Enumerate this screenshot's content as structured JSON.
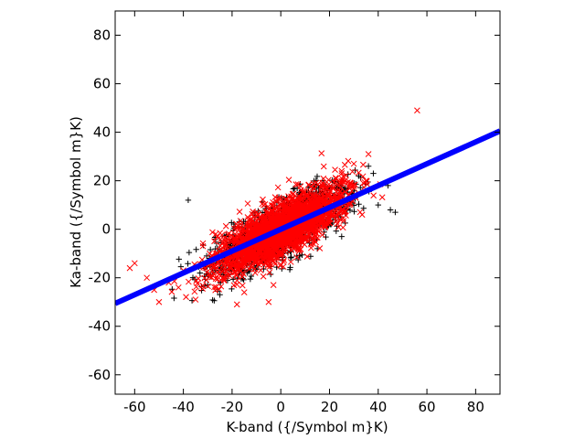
{
  "chart_data": {
    "type": "scatter",
    "title": "",
    "xlabel": "K-band ({/Symbol m}K)",
    "ylabel": "Ka-band ({/Symbol m}K)",
    "xlim": [
      -68,
      90
    ],
    "ylim": [
      -68,
      90
    ],
    "grid": false,
    "legend": "none",
    "xticks": [
      -60,
      -40,
      -20,
      0,
      20,
      40,
      60,
      80
    ],
    "yticks": [
      -60,
      -40,
      -20,
      0,
      20,
      40,
      60,
      80
    ],
    "series": [
      {
        "marker": "plus",
        "color": "#000000",
        "cloud": {
          "center": [
            0,
            0
          ],
          "slope": 0.5,
          "x_sd": 14,
          "residual_sd": 5.5,
          "count": 1500,
          "x_range": [
            -45,
            48
          ]
        },
        "points": [
          [
            -38,
            12
          ],
          [
            36,
            26
          ],
          [
            44,
            18
          ],
          [
            45,
            8
          ],
          [
            40,
            10
          ],
          [
            -25,
            -27
          ],
          [
            -30,
            -23
          ],
          [
            38,
            23
          ],
          [
            32,
            22
          ],
          [
            15,
            -8
          ],
          [
            -10,
            -15
          ],
          [
            25,
            -3
          ],
          [
            47,
            7
          ],
          [
            12,
            18
          ]
        ]
      },
      {
        "marker": "x",
        "color": "#ff0000",
        "cloud": {
          "center": [
            0,
            0
          ],
          "slope": 0.5,
          "x_sd": 13,
          "residual_sd": 5.5,
          "count": 2200,
          "x_range": [
            -65,
            42
          ]
        },
        "points": [
          [
            56,
            49
          ],
          [
            -62,
            -16
          ],
          [
            -60,
            -14
          ],
          [
            -55,
            -20
          ],
          [
            -52,
            -25
          ],
          [
            -50,
            -30
          ],
          [
            -46,
            -22
          ],
          [
            -42,
            -24
          ],
          [
            -18,
            -31
          ],
          [
            -15,
            -26
          ],
          [
            -5,
            -30
          ],
          [
            -3,
            -23
          ],
          [
            36,
            31
          ],
          [
            35,
            20
          ],
          [
            30,
            27
          ],
          [
            25,
            24
          ],
          [
            -35,
            -29
          ],
          [
            -40,
            -17
          ]
        ]
      },
      {
        "marker": "line",
        "color": "#0000ff",
        "fit": {
          "slope": 0.45,
          "intercept": 0.0
        },
        "x_range": [
          -68,
          90
        ]
      }
    ]
  }
}
